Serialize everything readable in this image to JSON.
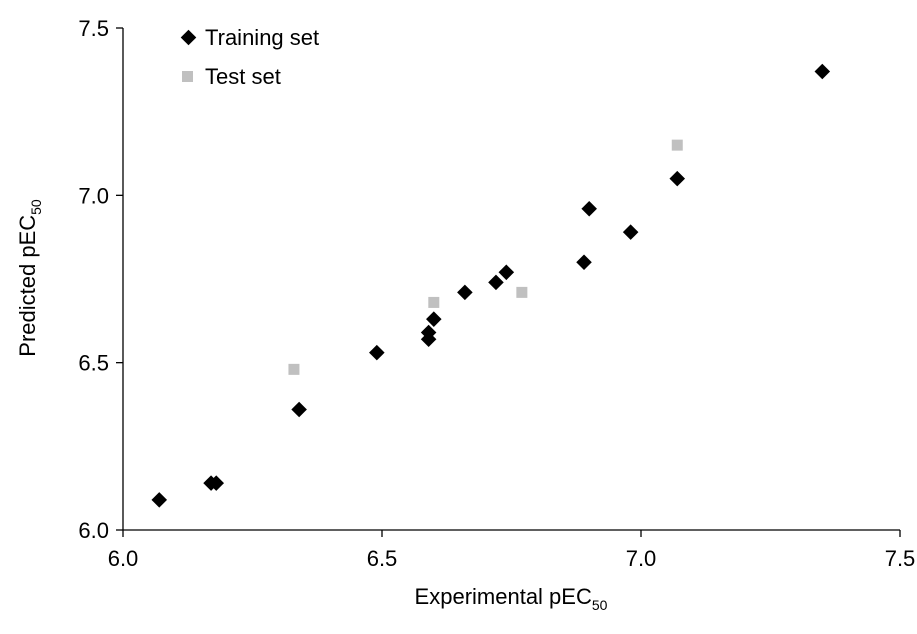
{
  "chart_data": {
    "type": "scatter",
    "xlabel": "Experimental pEC",
    "xlabel_sub": "50",
    "ylabel": "Predicted pEC",
    "ylabel_sub": "50",
    "xlim": [
      6.0,
      7.5
    ],
    "ylim": [
      6.0,
      7.5
    ],
    "xticks": [
      "6.0",
      "6.5",
      "7.0",
      "7.5"
    ],
    "yticks": [
      "6.0",
      "6.5",
      "7.0",
      "7.5"
    ],
    "grid": false,
    "legend_position": "top-left",
    "series": [
      {
        "name": "Training set",
        "marker": "diamond",
        "color": "#000000",
        "x": [
          6.07,
          6.17,
          6.18,
          6.34,
          6.49,
          6.59,
          6.59,
          6.6,
          6.66,
          6.72,
          6.74,
          6.89,
          6.9,
          6.98,
          7.07,
          7.35
        ],
        "y": [
          6.09,
          6.14,
          6.14,
          6.36,
          6.53,
          6.57,
          6.59,
          6.63,
          6.71,
          6.74,
          6.77,
          6.8,
          6.96,
          6.89,
          7.05,
          7.37
        ]
      },
      {
        "name": "Test set",
        "marker": "square",
        "color": "#c0c0c0",
        "x": [
          6.33,
          6.6,
          6.77,
          7.07
        ],
        "y": [
          6.48,
          6.68,
          6.71,
          7.15
        ]
      }
    ]
  }
}
